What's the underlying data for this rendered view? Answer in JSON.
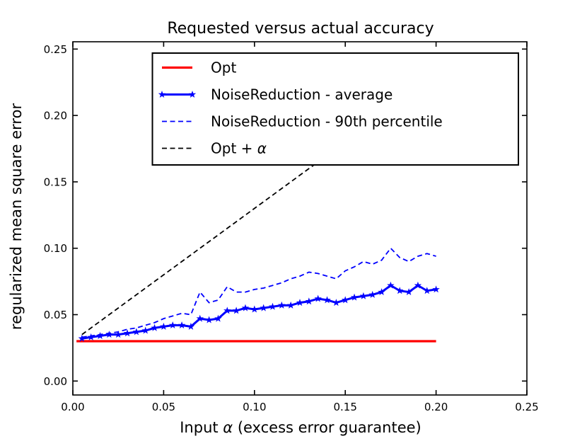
{
  "figure": {
    "background": "#ffffff",
    "axis_color": "#000000"
  },
  "chart_data": {
    "type": "line",
    "title": "Requested versus actual accuracy",
    "xlabel": "Input α (excess error guarantee)",
    "ylabel": "regularized mean square error",
    "xlim": [
      0.0,
      0.25
    ],
    "ylim": [
      -0.0105,
      0.2555
    ],
    "grid": false,
    "legend_position": "upper center (inside axes)",
    "xticks": {
      "values": [
        0.0,
        0.05,
        0.1,
        0.15,
        0.2,
        0.25
      ],
      "labels": [
        "0.00",
        "0.05",
        "0.10",
        "0.15",
        "0.20",
        "0.25"
      ]
    },
    "yticks": {
      "values": [
        0.0,
        0.05,
        0.1,
        0.15,
        0.2,
        0.25
      ],
      "labels": [
        "0.00",
        "0.05",
        "0.10",
        "0.15",
        "0.20",
        "0.25"
      ]
    },
    "series": [
      {
        "name": "Opt",
        "color": "#ff0000",
        "style": "solid",
        "linewidth": 3.2,
        "marker": "none",
        "x": [
          0.002,
          0.2
        ],
        "y": [
          0.03,
          0.03
        ]
      },
      {
        "name": "NoiseReduction - average",
        "color": "#0000ff",
        "style": "solid",
        "linewidth": 3.0,
        "marker": "star",
        "x": [
          0.005,
          0.01,
          0.015,
          0.02,
          0.025,
          0.03,
          0.035,
          0.04,
          0.045,
          0.05,
          0.055,
          0.06,
          0.065,
          0.07,
          0.075,
          0.08,
          0.085,
          0.09,
          0.095,
          0.1,
          0.105,
          0.11,
          0.115,
          0.12,
          0.125,
          0.13,
          0.135,
          0.14,
          0.145,
          0.15,
          0.155,
          0.16,
          0.165,
          0.17,
          0.175,
          0.18,
          0.185,
          0.19,
          0.195,
          0.2
        ],
        "y": [
          0.032,
          0.033,
          0.034,
          0.035,
          0.035,
          0.036,
          0.037,
          0.038,
          0.04,
          0.041,
          0.042,
          0.042,
          0.041,
          0.047,
          0.046,
          0.047,
          0.053,
          0.053,
          0.055,
          0.054,
          0.055,
          0.056,
          0.057,
          0.057,
          0.059,
          0.06,
          0.062,
          0.061,
          0.059,
          0.061,
          0.063,
          0.064,
          0.065,
          0.067,
          0.072,
          0.068,
          0.067,
          0.072,
          0.068,
          0.069
        ]
      },
      {
        "name": "NoiseReduction - 90th percentile",
        "color": "#0000ff",
        "style": "dashed",
        "linewidth": 1.8,
        "marker": "none",
        "x": [
          0.005,
          0.01,
          0.015,
          0.02,
          0.025,
          0.03,
          0.035,
          0.04,
          0.045,
          0.05,
          0.055,
          0.06,
          0.065,
          0.07,
          0.075,
          0.08,
          0.085,
          0.09,
          0.095,
          0.1,
          0.105,
          0.11,
          0.115,
          0.12,
          0.125,
          0.13,
          0.135,
          0.14,
          0.145,
          0.15,
          0.155,
          0.16,
          0.165,
          0.17,
          0.175,
          0.18,
          0.185,
          0.19,
          0.195,
          0.2
        ],
        "y": [
          0.033,
          0.034,
          0.035,
          0.036,
          0.037,
          0.039,
          0.04,
          0.042,
          0.044,
          0.047,
          0.049,
          0.051,
          0.05,
          0.067,
          0.059,
          0.061,
          0.071,
          0.067,
          0.067,
          0.069,
          0.07,
          0.072,
          0.074,
          0.077,
          0.079,
          0.082,
          0.081,
          0.079,
          0.077,
          0.083,
          0.086,
          0.09,
          0.088,
          0.091,
          0.1,
          0.093,
          0.09,
          0.094,
          0.096,
          0.094
        ]
      },
      {
        "name": "Opt + α",
        "color": "#000000",
        "style": "dashed",
        "linewidth": 1.8,
        "marker": "none",
        "x": [
          0.005,
          0.2
        ],
        "y": [
          0.035,
          0.23
        ]
      }
    ]
  }
}
